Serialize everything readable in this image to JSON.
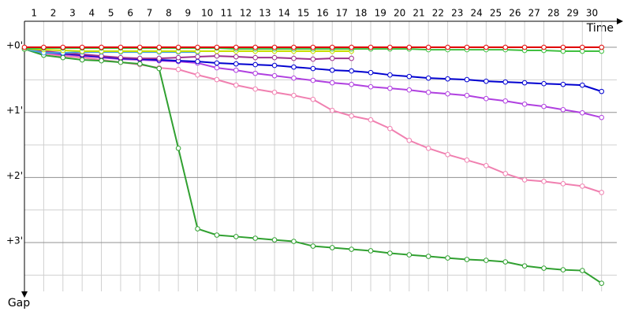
{
  "chart_data": {
    "type": "line",
    "x_label": "Time",
    "y_label": "Gap",
    "x": [
      0,
      1,
      2,
      3,
      4,
      5,
      6,
      7,
      8,
      9,
      10,
      11,
      12,
      13,
      14,
      15,
      16,
      17,
      18,
      19,
      20,
      21,
      22,
      23,
      24,
      25,
      26,
      27,
      28,
      29,
      30
    ],
    "xlim": [
      0,
      30.3
    ],
    "xticks": [
      1,
      2,
      3,
      4,
      5,
      6,
      7,
      8,
      9,
      10,
      11,
      12,
      13,
      14,
      15,
      16,
      17,
      18,
      19,
      20,
      21,
      22,
      23,
      24,
      25,
      26,
      27,
      28,
      29,
      30
    ],
    "ylim": [
      -24,
      225
    ],
    "y_inverted": true,
    "yticks": [
      {
        "value": 0,
        "label": "+0'"
      },
      {
        "value": 60,
        "label": "+1'"
      },
      {
        "value": 120,
        "label": "+2'"
      },
      {
        "value": 180,
        "label": "+3'"
      }
    ],
    "y_minor_gridlines": [
      30,
      90,
      150,
      210
    ],
    "grid": true,
    "series": [
      {
        "color": "#f080b0",
        "values": [
          1.5,
          5.8,
          8,
          9.5,
          11.6,
          13.8,
          16,
          18.9,
          20.4,
          25.5,
          29.8,
          34.9,
          38.5,
          41.5,
          44.4,
          48,
          58.2,
          63.3,
          66.9,
          74.9,
          85.8,
          93.1,
          98.9,
          104,
          109.1,
          116.4,
          122.2,
          123.6,
          125.8,
          128,
          133.8
        ]
      },
      {
        "color": "#b040e0",
        "values": [
          1.5,
          5.1,
          6.5,
          8,
          9.5,
          10.9,
          11.6,
          12.4,
          13.1,
          14.5,
          18.9,
          21.1,
          24,
          26.2,
          28.4,
          30.5,
          32.7,
          34.2,
          36.4,
          37.8,
          39.3,
          41.5,
          42.9,
          44.4,
          47.3,
          49.5,
          52.4,
          54.5,
          57.5,
          60.4,
          64.7
        ]
      },
      {
        "color": "#0000d0",
        "values": [
          1.5,
          4.4,
          5.8,
          7.3,
          8.7,
          10.2,
          10.9,
          11.6,
          12.4,
          13.1,
          14.5,
          15.3,
          16,
          16.7,
          18.2,
          19.6,
          21.1,
          21.8,
          23.3,
          25.5,
          26.9,
          28.4,
          29.1,
          29.8,
          31.3,
          32,
          32.7,
          33.5,
          34.2,
          34.9,
          40.7
        ]
      },
      {
        "color": "#a03090",
        "values": [
          1.5,
          3.6,
          5.1,
          6.5,
          8,
          9.5,
          10.2,
          10.2,
          9.5,
          8.7,
          8,
          8.7,
          9.5,
          9.5,
          10.2,
          10.9,
          10.2,
          10.2,
          null,
          null,
          null,
          null,
          null,
          null,
          null,
          null,
          null,
          null,
          null,
          null,
          null
        ]
      },
      {
        "color": "#30a030",
        "values": [
          1.5,
          7.3,
          9.5,
          11.6,
          12.4,
          13.8,
          15.3,
          19.6,
          93.1,
          167.3,
          173.1,
          174.5,
          176,
          177.5,
          178.9,
          183.3,
          184.7,
          186.2,
          187.6,
          189.8,
          191.3,
          192.7,
          194.2,
          195.6,
          196.4,
          197.8,
          201.5,
          203.6,
          205.1,
          205.8,
          217.5
        ]
      },
      {
        "color": "#40a0e0",
        "values": [
          1.5,
          5.1,
          5.1,
          4.4,
          4.4,
          4.4,
          4.4,
          4.4,
          4.4,
          4.4,
          null,
          null,
          null,
          null,
          null,
          null,
          null,
          null,
          null,
          null,
          null,
          null,
          null,
          null,
          null,
          null,
          null,
          null,
          null,
          null,
          null
        ]
      },
      {
        "color": "#c8e000",
        "values": [
          1.5,
          2.2,
          2.9,
          3.6,
          3.6,
          3.6,
          3.6,
          3.6,
          3.6,
          3.6,
          3.6,
          3.6,
          3.6,
          3.6,
          3.6,
          3.6,
          3.6,
          3.6,
          null,
          null,
          null,
          null,
          null,
          null,
          null,
          null,
          null,
          null,
          null,
          null,
          null
        ]
      },
      {
        "color": "#40c040",
        "values": [
          1.5,
          0.7,
          0.7,
          0.7,
          0.7,
          0.7,
          0.7,
          0.7,
          0.7,
          0.7,
          0.7,
          1.5,
          1.5,
          1.5,
          1.5,
          1.5,
          1.5,
          1.5,
          1.5,
          1.5,
          1.5,
          2.2,
          2.2,
          2.2,
          2.2,
          2.2,
          2.9,
          2.9,
          3.6,
          3.6,
          3.6
        ]
      },
      {
        "color": "#e00000",
        "values": [
          0,
          0,
          0,
          0,
          0,
          0,
          0,
          0,
          0,
          0,
          0,
          0,
          0,
          0,
          0,
          0,
          0,
          0,
          0,
          0,
          0,
          0,
          0,
          0,
          0,
          0,
          0,
          0,
          0,
          0,
          0
        ]
      }
    ]
  }
}
